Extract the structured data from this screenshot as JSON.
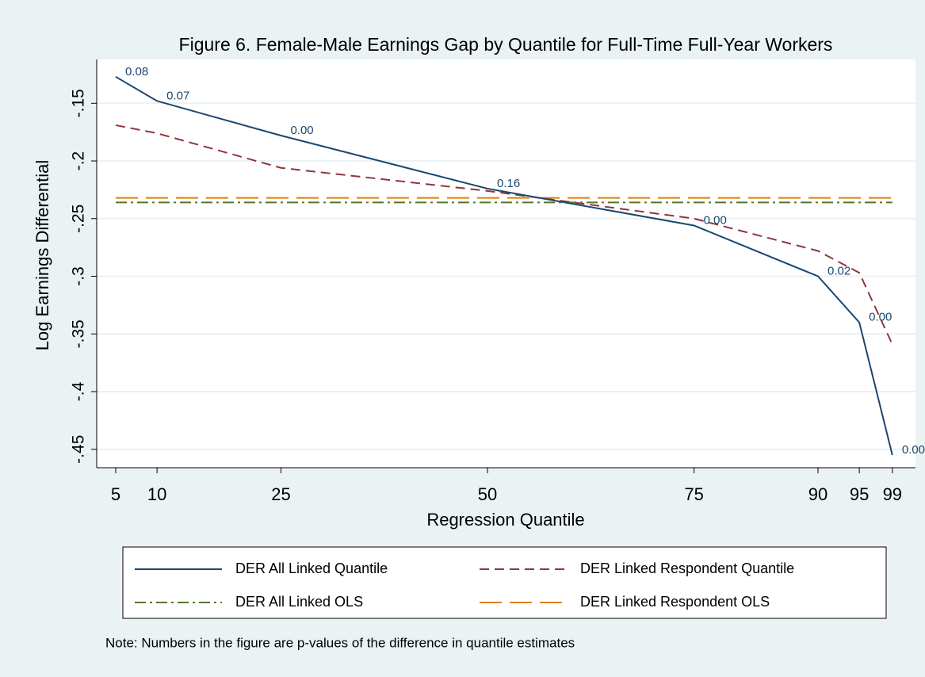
{
  "chart_data": {
    "type": "line",
    "title": "Figure 6. Female-Male Earnings Gap by Quantile for Full-Time Full-Year Workers",
    "x_label": "Regression Quantile",
    "y_label": "Log Earnings Differential",
    "x": [
      5,
      10,
      25,
      50,
      75,
      90,
      95,
      99
    ],
    "xlim": [
      2.7,
      101.8
    ],
    "xticks": [
      5,
      10,
      25,
      50,
      75,
      90,
      95,
      99
    ],
    "ylim": [
      -0.466,
      -0.112
    ],
    "yticks": [
      {
        "value": -0.15,
        "label": "-.15"
      },
      {
        "value": -0.2,
        "label": "-.2"
      },
      {
        "value": -0.25,
        "label": "-.25"
      },
      {
        "value": -0.3,
        "label": "-.3"
      },
      {
        "value": -0.35,
        "label": "-.35"
      },
      {
        "value": -0.4,
        "label": "-.4"
      },
      {
        "value": -0.45,
        "label": "-.45"
      }
    ],
    "grid": true,
    "series": [
      {
        "name": "DER All Linked Quantile",
        "color": "#1a476f",
        "dash": "solid",
        "values": [
          -0.127,
          -0.148,
          -0.178,
          -0.224,
          -0.256,
          -0.3,
          -0.34,
          -0.455
        ],
        "point_labels": [
          "0.08",
          "0.07",
          "0.00",
          "0.16",
          "0.00",
          "0.02",
          "0.00",
          "0.00"
        ]
      },
      {
        "name": "DER Linked Respondent Quantile",
        "color": "#90353b",
        "dash": "dash",
        "values": [
          -0.169,
          -0.176,
          -0.206,
          -0.226,
          -0.25,
          -0.278,
          -0.297,
          -0.359
        ]
      },
      {
        "name": "DER All Linked OLS",
        "color": "#55752f",
        "dash": "dashdot",
        "values": [
          -0.236,
          -0.236,
          -0.236,
          -0.236,
          -0.236,
          -0.236,
          -0.236,
          -0.236
        ]
      },
      {
        "name": "DER Linked Respondent OLS",
        "color": "#e37e00",
        "dash": "longdash",
        "values": [
          -0.232,
          -0.232,
          -0.232,
          -0.232,
          -0.232,
          -0.232,
          -0.232,
          -0.232
        ]
      }
    ],
    "note": "Note: Numbers in the figure are p-values of the difference in quantile estimates"
  }
}
